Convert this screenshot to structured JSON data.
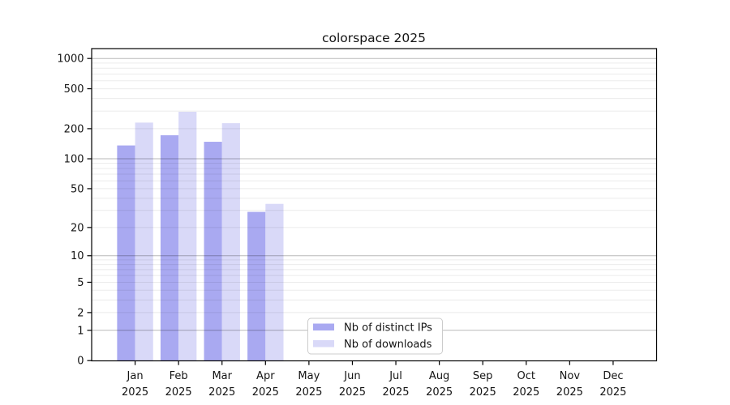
{
  "chart_data": {
    "type": "bar",
    "title": "colorspace 2025",
    "categories": [
      "Jan",
      "Feb",
      "Mar",
      "Apr",
      "May",
      "Jun",
      "Jul",
      "Aug",
      "Sep",
      "Oct",
      "Nov",
      "Dec"
    ],
    "year_label": "2025",
    "series": [
      {
        "name": "Nb of distinct IPs",
        "color": "#a9a9f1",
        "values": [
          136,
          172,
          148,
          29,
          null,
          null,
          null,
          null,
          null,
          null,
          null,
          null
        ]
      },
      {
        "name": "Nb of downloads",
        "color": "#d9d9f8",
        "values": [
          230,
          295,
          227,
          35,
          null,
          null,
          null,
          null,
          null,
          null,
          null,
          null
        ]
      }
    ],
    "y_axis": {
      "scale": "log10(value+1)",
      "tick_labels": [
        0,
        1,
        2,
        5,
        10,
        20,
        50,
        100,
        200,
        500,
        1000
      ],
      "major_gridlines": [
        1,
        10,
        100,
        1000
      ],
      "ylim": [
        0,
        1250
      ],
      "grid": "on"
    },
    "x_axis": {
      "tick_labels_two_lines": true
    },
    "legend": {
      "position": "lower center",
      "entries": [
        "Nb of distinct IPs",
        "Nb of downloads"
      ]
    }
  }
}
